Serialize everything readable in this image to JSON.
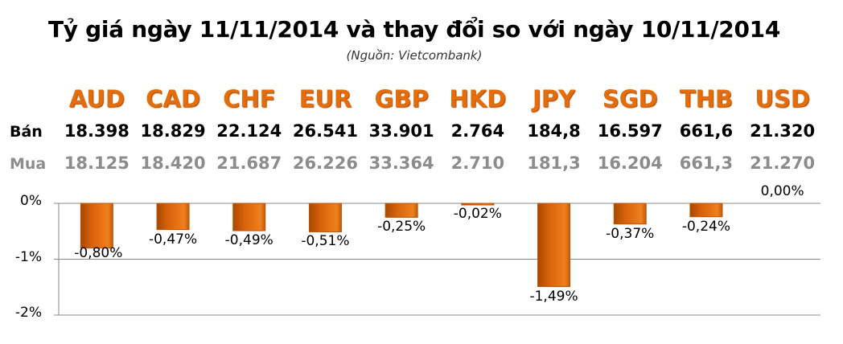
{
  "title": "Tỷ giá ngày 11/11/2014 và thay đổi so với ngày 10/11/2014",
  "source": "(Nguồn: Vietcombank)",
  "row_labels": {
    "sell": "Bán",
    "buy": "Mua"
  },
  "colors": {
    "bar": "#e46c0a",
    "bar_dark": "#a84800",
    "currency": "#e46c0a",
    "buy_text": "#8c8c8c",
    "grid": "#888888"
  },
  "chart_data": {
    "type": "bar",
    "title": "Tỷ giá ngày 11/11/2014 và thay đổi so với ngày 10/11/2014",
    "categories": [
      "AUD",
      "CAD",
      "CHF",
      "EUR",
      "GBP",
      "HKD",
      "JPY",
      "SGD",
      "THB",
      "USD"
    ],
    "sell": [
      "18.398",
      "18.829",
      "22.124",
      "26.541",
      "33.901",
      "2.764",
      "184,8",
      "16.597",
      "661,6",
      "21.320"
    ],
    "buy": [
      "18.125",
      "18.420",
      "21.687",
      "26.226",
      "33.364",
      "2.710",
      "181,3",
      "16.204",
      "661,3",
      "21.270"
    ],
    "values": [
      -0.8,
      -0.47,
      -0.49,
      -0.51,
      -0.25,
      -0.02,
      -1.49,
      -0.37,
      -0.24,
      0.0
    ],
    "data_labels": [
      "-0,80%",
      "-0,47%",
      "-0,49%",
      "-0,51%",
      "-0,25%",
      "-0,02%",
      "-1,49%",
      "-0,37%",
      "-0,24%",
      "0,00%"
    ],
    "yticks": [
      0,
      -1,
      -2
    ],
    "ytick_labels": [
      "0%",
      "-1%",
      "-2%"
    ],
    "ylim": [
      -2,
      0
    ],
    "grid": true,
    "xlabel": "",
    "ylabel": ""
  }
}
